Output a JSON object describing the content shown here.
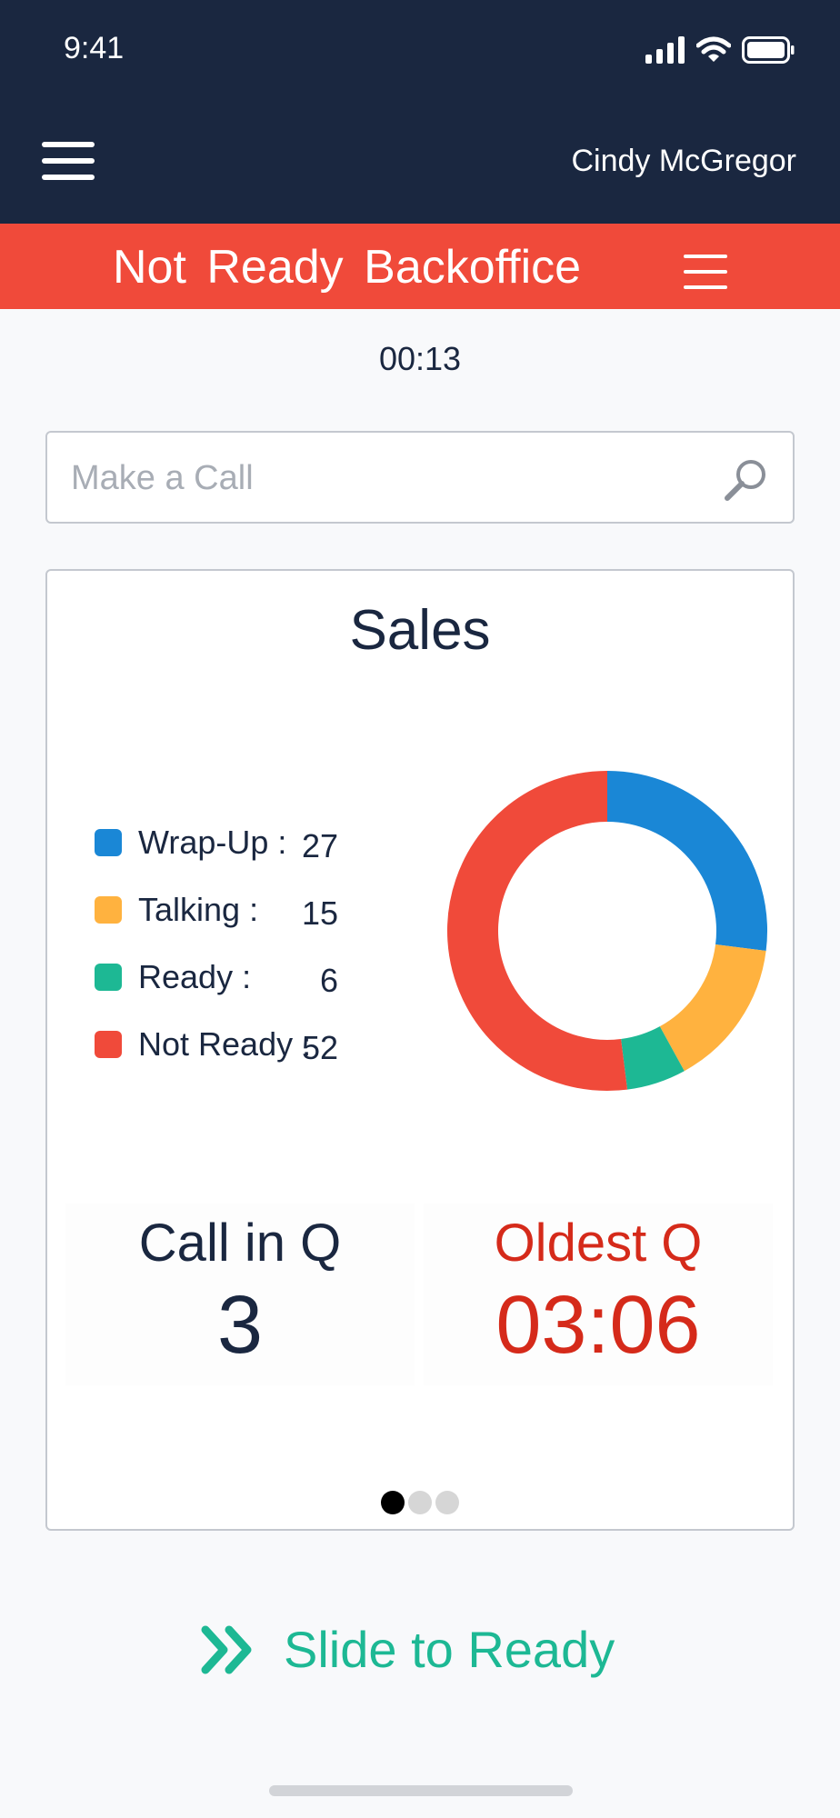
{
  "status_bar": {
    "time": "9:41"
  },
  "header": {
    "user_name": "Cindy McGregor"
  },
  "agent_status": {
    "state": "Not Ready",
    "reason": "Backoffice",
    "timer": "00:13",
    "color": "#f04a3a"
  },
  "search": {
    "placeholder": "Make a Call",
    "value": ""
  },
  "card": {
    "title": "Sales",
    "legend": [
      {
        "label": "Wrap-Up :",
        "value": "27",
        "color": "#1a87d6"
      },
      {
        "label": "Talking :",
        "value": "15",
        "color": "#ffb23f"
      },
      {
        "label": "Ready :",
        "value": "6",
        "color": "#1db894"
      },
      {
        "label": "Not Ready :",
        "value": "52",
        "color": "#f04a3a"
      }
    ],
    "call_in_q": {
      "label": "Call in Q",
      "value": "3"
    },
    "oldest_q": {
      "label": "Oldest Q",
      "value": "03:06"
    },
    "page_indicator": {
      "pages": 3,
      "active": 0
    }
  },
  "chart_data": {
    "type": "pie",
    "categories": [
      "Wrap-Up",
      "Talking",
      "Ready",
      "Not Ready"
    ],
    "values": [
      27,
      15,
      6,
      52
    ],
    "colors": [
      "#1a87d6",
      "#ffb23f",
      "#1db894",
      "#f04a3a"
    ],
    "title": "Sales"
  },
  "slide_action": {
    "label": "Slide to Ready",
    "color": "#1db894"
  }
}
